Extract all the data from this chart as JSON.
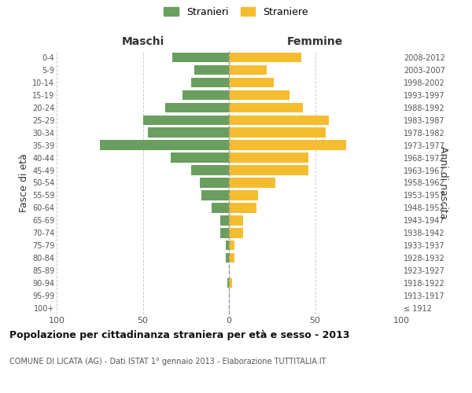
{
  "age_groups": [
    "100+",
    "95-99",
    "90-94",
    "85-89",
    "80-84",
    "75-79",
    "70-74",
    "65-69",
    "60-64",
    "55-59",
    "50-54",
    "45-49",
    "40-44",
    "35-39",
    "30-34",
    "25-29",
    "20-24",
    "15-19",
    "10-14",
    "5-9",
    "0-4"
  ],
  "birth_years": [
    "≤ 1912",
    "1913-1917",
    "1918-1922",
    "1923-1927",
    "1928-1932",
    "1933-1937",
    "1938-1942",
    "1943-1947",
    "1948-1952",
    "1953-1957",
    "1958-1962",
    "1963-1967",
    "1968-1972",
    "1973-1977",
    "1978-1982",
    "1983-1987",
    "1988-1992",
    "1993-1997",
    "1998-2002",
    "2003-2007",
    "2008-2012"
  ],
  "maschi": [
    0,
    0,
    1,
    0,
    2,
    2,
    5,
    5,
    10,
    16,
    17,
    22,
    34,
    75,
    47,
    50,
    37,
    27,
    22,
    20,
    33
  ],
  "femmine": [
    0,
    0,
    2,
    0,
    3,
    3,
    8,
    8,
    16,
    17,
    27,
    46,
    46,
    68,
    56,
    58,
    43,
    35,
    26,
    22,
    42
  ],
  "maschi_color": "#6a9e5e",
  "femmine_color": "#f5bc2f",
  "title": "Popolazione per cittadinanza straniera per età e sesso - 2013",
  "subtitle": "COMUNE DI LICATA (AG) - Dati ISTAT 1° gennaio 2013 - Elaborazione TUTTITALIA.IT",
  "ylabel_left": "Fasce di età",
  "ylabel_right": "Anni di nascita",
  "xlabel_left": "Maschi",
  "xlabel_right": "Femmine",
  "legend_maschi": "Stranieri",
  "legend_femmine": "Straniere",
  "xlim": 100,
  "background_color": "#ffffff",
  "grid_color": "#cccccc"
}
